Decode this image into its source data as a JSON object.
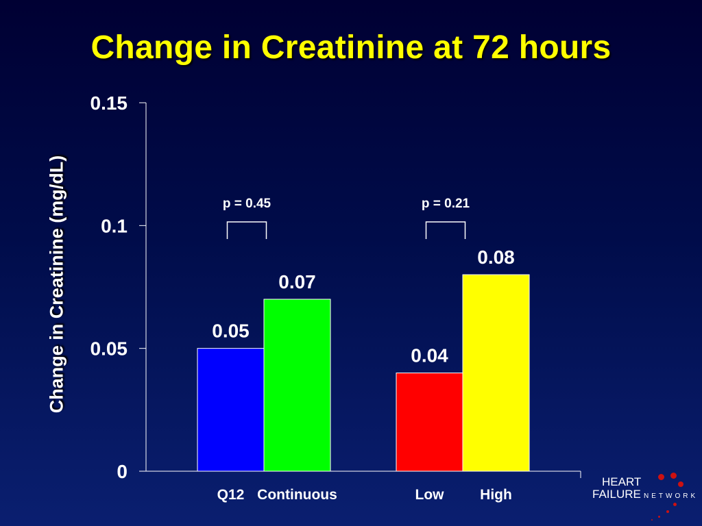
{
  "title": "Change in Creatinine at 72 hours",
  "colors": {
    "background": "#000a4a",
    "title": "#ffff00",
    "text": "#ffffff",
    "axis": "#ffffff"
  },
  "chart_data": {
    "type": "bar",
    "title": "Change in Creatinine at 72 hours",
    "xlabel": "",
    "ylabel": "Change in Creatinine (mg/dL)",
    "ylim": [
      0,
      0.15
    ],
    "yticks": [
      0,
      0.05,
      0.1,
      0.15
    ],
    "ytick_labels": [
      "0",
      "0.05",
      "0.1",
      "0.15"
    ],
    "grid": false,
    "groups": [
      {
        "bars": [
          {
            "category": "Q12",
            "value": 0.05,
            "label": "0.05",
            "color": "#0000ff"
          },
          {
            "category": "Continuous",
            "value": 0.07,
            "label": "0.07",
            "color": "#00ff00"
          }
        ],
        "annotation": "p = 0.45"
      },
      {
        "bars": [
          {
            "category": "Low",
            "value": 0.04,
            "label": "0.04",
            "color": "#ff0000"
          },
          {
            "category": "High",
            "value": 0.08,
            "label": "0.08",
            "color": "#ffff00"
          }
        ],
        "annotation": "p = 0.21"
      }
    ]
  },
  "logo": {
    "line1": "HEART",
    "line2": "FAILURE",
    "line3": "NETWORK",
    "dot_color": "#cc1111"
  }
}
